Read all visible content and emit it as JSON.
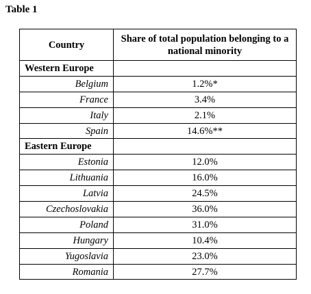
{
  "title": "Table 1",
  "table": {
    "header": [
      "Country",
      "Share of total population belonging to a national minority"
    ],
    "rows": [
      [
        "Western Europe"
      ],
      [
        "Belgium",
        "1.2%*"
      ],
      [
        "France",
        "3.4%"
      ],
      [
        "Italy",
        "2.1%"
      ],
      [
        "Spain",
        "14.6%**"
      ],
      [
        "Eastern Europe"
      ],
      [
        "Estonia",
        "12.0%"
      ],
      [
        "Lithuania",
        "16.0%"
      ],
      [
        "Latvia",
        "24.5%"
      ],
      [
        "Czechoslovakia",
        "36.0%"
      ],
      [
        "Poland",
        "31.0%"
      ],
      [
        "Hungary",
        "10.4%"
      ],
      [
        "Yugoslavia",
        "23.0%"
      ],
      [
        "Romania",
        "27.7%"
      ]
    ]
  }
}
